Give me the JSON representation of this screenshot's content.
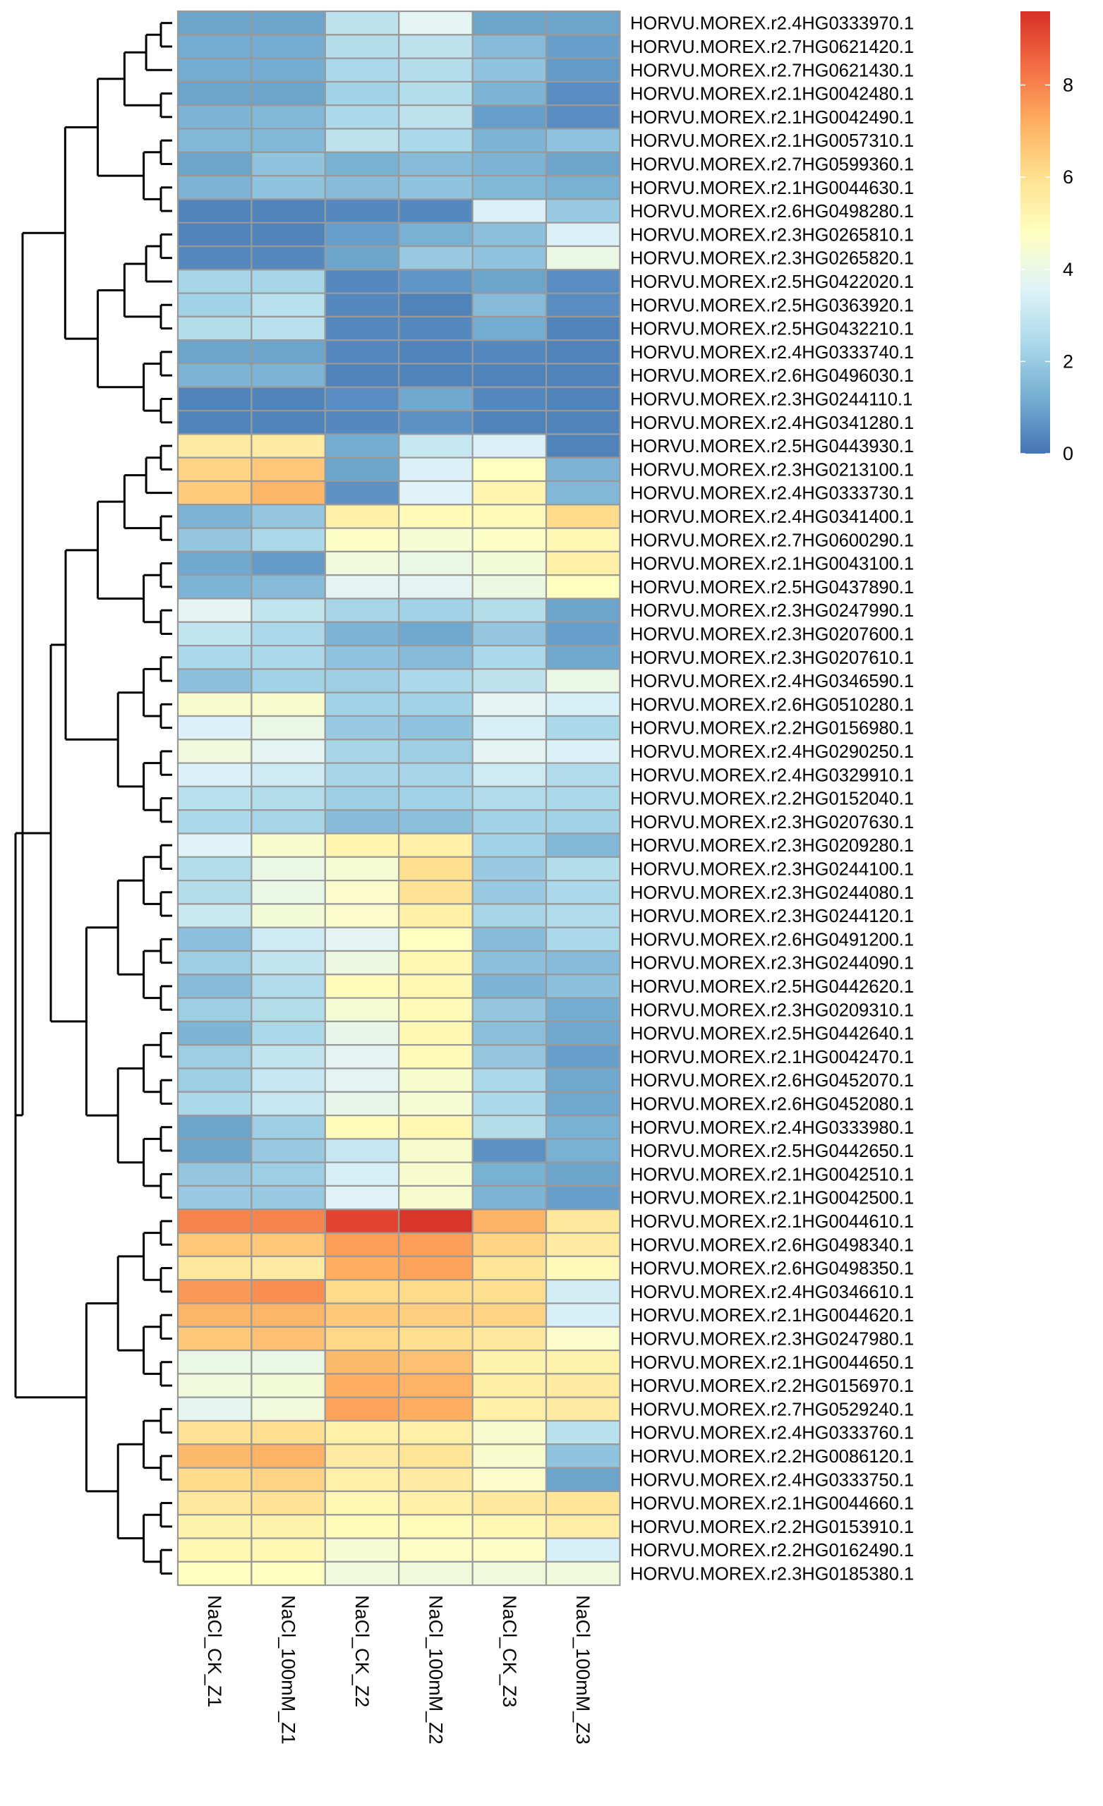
{
  "chart_data": {
    "type": "heatmap",
    "title": "",
    "xlabel": "",
    "ylabel": "",
    "columns": [
      "NaCl_CK_Z1",
      "NaCl_100mM_Z1",
      "NaCl_CK_Z2",
      "NaCl_100mM_Z2",
      "NaCl_CK_Z3",
      "NaCl_100mM_Z3"
    ],
    "rows": [
      "HORVU.MOREX.r2.4HG0333970.1",
      "HORVU.MOREX.r2.7HG0621420.1",
      "HORVU.MOREX.r2.7HG0621430.1",
      "HORVU.MOREX.r2.1HG0042480.1",
      "HORVU.MOREX.r2.1HG0042490.1",
      "HORVU.MOREX.r2.1HG0057310.1",
      "HORVU.MOREX.r2.7HG0599360.1",
      "HORVU.MOREX.r2.1HG0044630.1",
      "HORVU.MOREX.r2.6HG0498280.1",
      "HORVU.MOREX.r2.3HG0265810.1",
      "HORVU.MOREX.r2.3HG0265820.1",
      "HORVU.MOREX.r2.5HG0422020.1",
      "HORVU.MOREX.r2.5HG0363920.1",
      "HORVU.MOREX.r2.5HG0432210.1",
      "HORVU.MOREX.r2.4HG0333740.1",
      "HORVU.MOREX.r2.6HG0496030.1",
      "HORVU.MOREX.r2.3HG0244110.1",
      "HORVU.MOREX.r2.4HG0341280.1",
      "HORVU.MOREX.r2.5HG0443930.1",
      "HORVU.MOREX.r2.3HG0213100.1",
      "HORVU.MOREX.r2.4HG0333730.1",
      "HORVU.MOREX.r2.4HG0341400.1",
      "HORVU.MOREX.r2.7HG0600290.1",
      "HORVU.MOREX.r2.1HG0043100.1",
      "HORVU.MOREX.r2.5HG0437890.1",
      "HORVU.MOREX.r2.3HG0247990.1",
      "HORVU.MOREX.r2.3HG0207600.1",
      "HORVU.MOREX.r2.3HG0207610.1",
      "HORVU.MOREX.r2.4HG0346590.1",
      "HORVU.MOREX.r2.6HG0510280.1",
      "HORVU.MOREX.r2.2HG0156980.1",
      "HORVU.MOREX.r2.4HG0290250.1",
      "HORVU.MOREX.r2.4HG0329910.1",
      "HORVU.MOREX.r2.2HG0152040.1",
      "HORVU.MOREX.r2.3HG0207630.1",
      "HORVU.MOREX.r2.3HG0209280.1",
      "HORVU.MOREX.r2.3HG0244100.1",
      "HORVU.MOREX.r2.3HG0244080.1",
      "HORVU.MOREX.r2.3HG0244120.1",
      "HORVU.MOREX.r2.6HG0491200.1",
      "HORVU.MOREX.r2.3HG0244090.1",
      "HORVU.MOREX.r2.5HG0442620.1",
      "HORVU.MOREX.r2.3HG0209310.1",
      "HORVU.MOREX.r2.5HG0442640.1",
      "HORVU.MOREX.r2.1HG0042470.1",
      "HORVU.MOREX.r2.6HG0452070.1",
      "HORVU.MOREX.r2.6HG0452080.1",
      "HORVU.MOREX.r2.4HG0333980.1",
      "HORVU.MOREX.r2.5HG0442650.1",
      "HORVU.MOREX.r2.1HG0042510.1",
      "HORVU.MOREX.r2.1HG0042500.1",
      "HORVU.MOREX.r2.1HG0044610.1",
      "HORVU.MOREX.r2.6HG0498340.1",
      "HORVU.MOREX.r2.6HG0498350.1",
      "HORVU.MOREX.r2.4HG0346610.1",
      "HORVU.MOREX.r2.1HG0044620.1",
      "HORVU.MOREX.r2.3HG0247980.1",
      "HORVU.MOREX.r2.1HG0044650.1",
      "HORVU.MOREX.r2.2HG0156970.1",
      "HORVU.MOREX.r2.7HG0529240.1",
      "HORVU.MOREX.r2.4HG0333760.1",
      "HORVU.MOREX.r2.2HG0086120.1",
      "HORVU.MOREX.r2.4HG0333750.1",
      "HORVU.MOREX.r2.1HG0044660.1",
      "HORVU.MOREX.r2.2HG0153910.1",
      "HORVU.MOREX.r2.2HG0162490.1",
      "HORVU.MOREX.r2.3HG0185380.1"
    ],
    "values": [
      [
        1.0,
        1.0,
        2.8,
        3.7,
        1.0,
        1.0
      ],
      [
        1.2,
        1.2,
        2.6,
        2.8,
        1.6,
        0.9
      ],
      [
        1.2,
        1.2,
        2.4,
        2.6,
        1.8,
        0.8
      ],
      [
        1.0,
        1.0,
        2.2,
        2.6,
        1.4,
        0.5
      ],
      [
        1.4,
        1.5,
        2.4,
        2.8,
        0.9,
        0.5
      ],
      [
        1.5,
        1.5,
        2.8,
        2.4,
        1.4,
        1.8
      ],
      [
        1.0,
        1.8,
        1.3,
        1.6,
        1.4,
        1.0
      ],
      [
        1.4,
        1.8,
        1.6,
        1.8,
        1.5,
        1.3
      ],
      [
        0.3,
        0.3,
        0.4,
        0.4,
        3.5,
        2.0
      ],
      [
        0.3,
        0.3,
        0.9,
        1.3,
        1.7,
        3.5
      ],
      [
        0.4,
        0.4,
        1.0,
        2.0,
        1.8,
        4.0
      ],
      [
        2.3,
        2.3,
        0.4,
        0.7,
        1.0,
        0.5
      ],
      [
        2.2,
        2.7,
        0.4,
        0.3,
        1.6,
        0.5
      ],
      [
        2.6,
        2.7,
        0.4,
        0.4,
        1.2,
        0.3
      ],
      [
        1.0,
        1.0,
        0.4,
        0.3,
        0.4,
        0.3
      ],
      [
        1.4,
        1.4,
        0.3,
        0.3,
        0.3,
        0.3
      ],
      [
        0.3,
        0.3,
        0.5,
        1.1,
        0.4,
        0.3
      ],
      [
        0.3,
        0.3,
        0.4,
        0.6,
        0.3,
        0.3
      ],
      [
        5.6,
        5.6,
        1.2,
        3.0,
        3.5,
        0.3
      ],
      [
        6.3,
        6.6,
        1.0,
        3.5,
        4.8,
        1.4
      ],
      [
        6.5,
        7.0,
        0.6,
        3.6,
        5.2,
        1.5
      ],
      [
        1.4,
        1.9,
        5.4,
        5.0,
        5.0,
        6.1
      ],
      [
        1.9,
        2.4,
        4.7,
        4.4,
        4.7,
        5.1
      ],
      [
        1.1,
        0.8,
        4.2,
        4.0,
        4.3,
        5.4
      ],
      [
        1.4,
        1.6,
        3.7,
        3.7,
        4.1,
        4.8
      ],
      [
        3.7,
        2.9,
        2.3,
        2.2,
        2.6,
        1.0
      ],
      [
        2.9,
        2.4,
        1.4,
        1.1,
        1.9,
        0.9
      ],
      [
        2.4,
        2.4,
        1.8,
        1.6,
        2.4,
        1.1
      ],
      [
        1.7,
        2.2,
        2.1,
        2.4,
        2.8,
        4.0
      ],
      [
        4.5,
        4.5,
        2.2,
        2.2,
        3.7,
        3.4
      ],
      [
        3.5,
        4.0,
        2.0,
        1.8,
        3.4,
        2.4
      ],
      [
        4.2,
        3.7,
        2.3,
        2.1,
        3.7,
        3.5
      ],
      [
        3.5,
        3.2,
        2.3,
        2.3,
        3.2,
        2.5
      ],
      [
        2.7,
        2.6,
        2.1,
        2.2,
        2.5,
        2.4
      ],
      [
        2.4,
        2.3,
        1.6,
        1.7,
        2.2,
        2.2
      ],
      [
        3.6,
        4.5,
        5.2,
        5.4,
        2.2,
        1.5
      ],
      [
        2.6,
        4.0,
        4.4,
        6.0,
        2.0,
        2.6
      ],
      [
        2.6,
        4.0,
        4.6,
        5.9,
        2.0,
        2.4
      ],
      [
        3.1,
        4.3,
        4.6,
        5.4,
        2.3,
        2.5
      ],
      [
        1.7,
        3.2,
        3.7,
        4.8,
        1.6,
        2.4
      ],
      [
        2.1,
        2.9,
        4.1,
        5.1,
        1.7,
        1.6
      ],
      [
        1.6,
        2.5,
        4.9,
        5.1,
        1.4,
        1.7
      ],
      [
        2.1,
        2.6,
        4.4,
        5.0,
        1.9,
        1.2
      ],
      [
        1.4,
        2.4,
        3.9,
        5.1,
        1.7,
        1.1
      ],
      [
        2.1,
        2.9,
        3.7,
        5.0,
        1.9,
        0.9
      ],
      [
        2.1,
        3.0,
        3.7,
        4.5,
        2.4,
        1.1
      ],
      [
        2.4,
        3.0,
        3.9,
        4.4,
        2.4,
        1.1
      ],
      [
        1.0,
        2.1,
        4.9,
        5.1,
        2.6,
        1.3
      ],
      [
        1.0,
        2.0,
        3.0,
        4.5,
        0.6,
        1.3
      ],
      [
        1.9,
        2.1,
        3.4,
        4.5,
        1.3,
        1.0
      ],
      [
        2.0,
        2.0,
        3.6,
        4.5,
        1.4,
        0.9
      ],
      [
        8.0,
        8.0,
        9.2,
        9.5,
        7.1,
        5.7
      ],
      [
        6.6,
        6.6,
        7.5,
        7.5,
        6.3,
        5.6
      ],
      [
        5.7,
        5.6,
        7.2,
        7.4,
        5.8,
        5.0
      ],
      [
        7.6,
        7.8,
        6.1,
        6.1,
        6.0,
        3.3
      ],
      [
        7.0,
        7.0,
        6.6,
        6.4,
        6.3,
        3.4
      ],
      [
        6.6,
        6.8,
        6.2,
        6.0,
        5.7,
        4.6
      ],
      [
        4.0,
        4.0,
        6.9,
        6.8,
        5.3,
        5.3
      ],
      [
        4.2,
        4.3,
        7.2,
        7.1,
        5.5,
        5.6
      ],
      [
        3.8,
        4.2,
        7.4,
        7.2,
        5.4,
        5.6
      ],
      [
        5.9,
        6.0,
        5.4,
        5.4,
        4.5,
        2.7
      ],
      [
        6.9,
        7.1,
        5.6,
        5.8,
        4.5,
        1.8
      ],
      [
        6.1,
        6.3,
        5.4,
        5.6,
        4.6,
        1.0
      ],
      [
        5.7,
        5.9,
        5.1,
        5.4,
        5.7,
        5.8
      ],
      [
        5.3,
        5.3,
        4.9,
        4.9,
        5.1,
        5.5
      ],
      [
        5.1,
        5.1,
        4.4,
        4.7,
        4.7,
        3.4
      ],
      [
        4.8,
        4.8,
        4.2,
        4.2,
        4.2,
        4.2
      ]
    ],
    "colorbar": {
      "range": [
        0,
        9.6
      ],
      "ticks": [
        "0",
        "2",
        "4",
        "6",
        "8"
      ],
      "tick_values": [
        0,
        2,
        4,
        6,
        8
      ],
      "palette": [
        "#4575b4",
        "#74add1",
        "#abd9e9",
        "#e0f3f8",
        "#ffffbf",
        "#fee090",
        "#fdae61",
        "#f46d43",
        "#d73027"
      ]
    },
    "cell_border_color": "#999999",
    "dendrogram": {
      "side": "left",
      "clusters": [
        {
          "rows": [
            0,
            17
          ]
        },
        {
          "rows": [
            18,
            50
          ]
        },
        {
          "rows": [
            51,
            66
          ]
        }
      ]
    }
  }
}
